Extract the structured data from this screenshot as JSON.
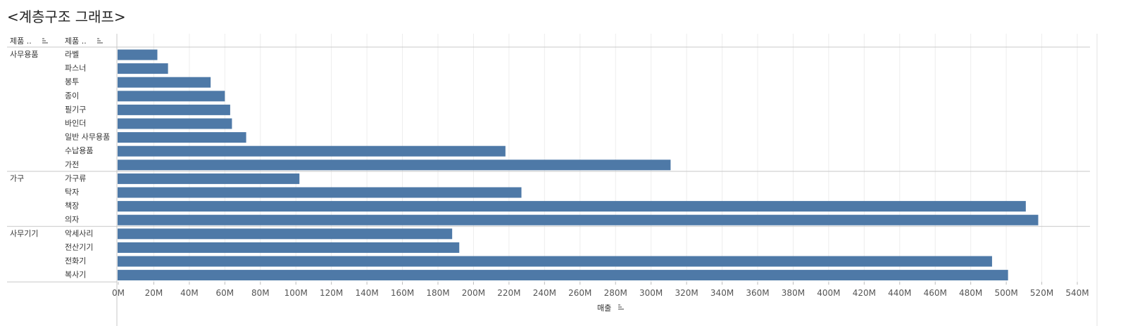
{
  "title": "<계층구조 그래프>",
  "headers": {
    "col1": "제품 ..",
    "col2": "제품 ..",
    "col1_sort_icon": "sort-icon",
    "col2_sort_icon": "sort-icon"
  },
  "chart_data": {
    "type": "bar",
    "orientation": "horizontal",
    "xlabel": "매출",
    "xlabel_sort_icon": "sort-icon",
    "xlim": [
      0,
      540000000
    ],
    "x_ticks": [
      "0M",
      "20M",
      "40M",
      "60M",
      "80M",
      "100M",
      "120M",
      "140M",
      "160M",
      "180M",
      "200M",
      "220M",
      "240M",
      "260M",
      "280M",
      "300M",
      "320M",
      "340M",
      "360M",
      "380M",
      "400M",
      "420M",
      "440M",
      "460M",
      "480M",
      "500M",
      "520M",
      "540M"
    ],
    "bar_color": "#4e79a7",
    "grid": true,
    "groups": [
      {
        "name": "사무용품",
        "items": [
          {
            "label": "라벨",
            "value": 22000000
          },
          {
            "label": "파스너",
            "value": 28000000
          },
          {
            "label": "봉투",
            "value": 52000000
          },
          {
            "label": "종이",
            "value": 60000000
          },
          {
            "label": "필기구",
            "value": 63000000
          },
          {
            "label": "바인더",
            "value": 64000000
          },
          {
            "label": "일반 사무용품",
            "value": 72000000
          },
          {
            "label": "수납용품",
            "value": 218000000
          },
          {
            "label": "가전",
            "value": 311000000
          }
        ]
      },
      {
        "name": "가구",
        "items": [
          {
            "label": "가구류",
            "value": 102000000
          },
          {
            "label": "탁자",
            "value": 227000000
          },
          {
            "label": "책장",
            "value": 511000000
          },
          {
            "label": "의자",
            "value": 518000000
          }
        ]
      },
      {
        "name": "사무기기",
        "items": [
          {
            "label": "악세사리",
            "value": 188000000
          },
          {
            "label": "전산기기",
            "value": 192000000
          },
          {
            "label": "전화기",
            "value": 492000000
          },
          {
            "label": "복사기",
            "value": 501000000
          }
        ]
      }
    ]
  }
}
